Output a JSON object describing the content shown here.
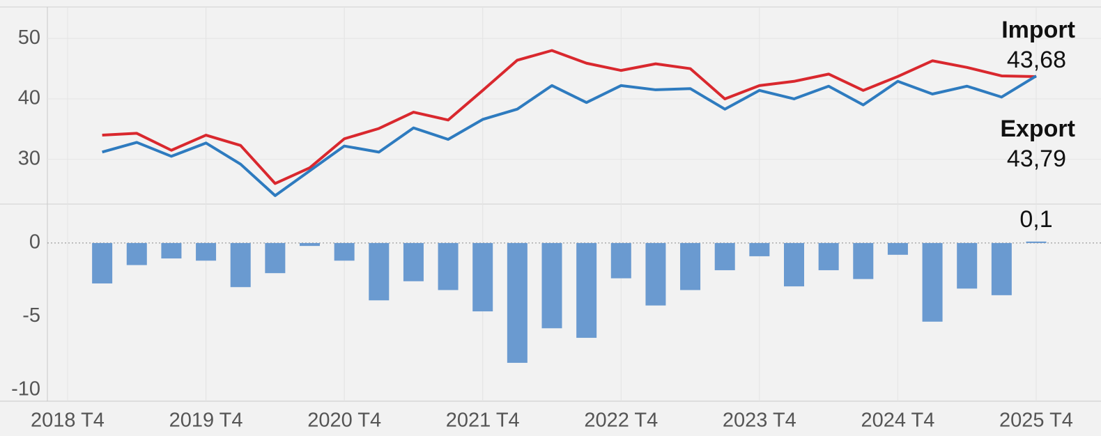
{
  "chart_data": [
    {
      "type": "line",
      "ylim": [
        22.6,
        55.2
      ],
      "yticks": [
        30,
        40,
        50
      ],
      "series": [
        {
          "name": "Import",
          "color": "#d9282e",
          "values": [
            null,
            34.0,
            34.3,
            31.5,
            34.0,
            32.3,
            26.0,
            28.6,
            33.4,
            35.1,
            37.8,
            36.5,
            41.4,
            46.4,
            48.0,
            45.9,
            44.7,
            45.8,
            45.0,
            40.0,
            42.2,
            42.9,
            44.1,
            41.4,
            43.7,
            46.3,
            45.2,
            43.8,
            43.68
          ],
          "value_labels": [
            null,
            null,
            null,
            null,
            null,
            null,
            null,
            null,
            null,
            null,
            null,
            null,
            null,
            null,
            null,
            null,
            null,
            null,
            null,
            null,
            null,
            null,
            null,
            null,
            null,
            null,
            null,
            null,
            "43,68"
          ]
        },
        {
          "name": "Export",
          "color": "#2e7bbf",
          "values": [
            null,
            31.2,
            32.8,
            30.5,
            32.7,
            29.2,
            24.0,
            28.1,
            32.2,
            31.2,
            35.2,
            33.3,
            36.6,
            38.3,
            42.2,
            39.4,
            42.2,
            41.5,
            41.7,
            38.3,
            41.4,
            40.0,
            42.1,
            39.0,
            42.9,
            40.8,
            42.1,
            40.3,
            43.79
          ],
          "value_labels": [
            null,
            null,
            null,
            null,
            null,
            null,
            null,
            null,
            null,
            null,
            null,
            null,
            null,
            null,
            null,
            null,
            null,
            null,
            null,
            null,
            null,
            null,
            null,
            null,
            null,
            null,
            null,
            null,
            "43,79"
          ]
        }
      ]
    },
    {
      "type": "bar",
      "color": "#6a9ad0",
      "categories": [
        "2018 T4",
        null,
        null,
        null,
        "2019 T4",
        null,
        null,
        null,
        "2020 T4",
        null,
        null,
        null,
        "2021 T4",
        null,
        null,
        null,
        "2022 T4",
        null,
        null,
        null,
        "2023 T4",
        null,
        null,
        null,
        "2024 T4",
        null,
        null,
        null,
        "2025 T4"
      ],
      "values": [
        null,
        -2.75,
        -1.5,
        -1.05,
        -1.2,
        -3.0,
        -2.05,
        -0.2,
        -1.2,
        -3.9,
        -2.6,
        -3.2,
        -4.65,
        -8.15,
        -5.8,
        -6.45,
        -2.4,
        -4.25,
        -3.2,
        -1.85,
        -0.9,
        -2.95,
        -1.85,
        -2.45,
        -0.8,
        -5.35,
        -3.1,
        -3.55,
        0.1
      ],
      "value_labels": [
        null,
        null,
        null,
        null,
        null,
        null,
        null,
        null,
        null,
        null,
        null,
        null,
        null,
        null,
        null,
        null,
        null,
        null,
        null,
        null,
        null,
        null,
        null,
        null,
        null,
        null,
        null,
        null,
        "0,1"
      ],
      "ylim": [
        -10.76,
        2.65
      ],
      "yticks": [
        -10,
        -5,
        0
      ]
    }
  ]
}
